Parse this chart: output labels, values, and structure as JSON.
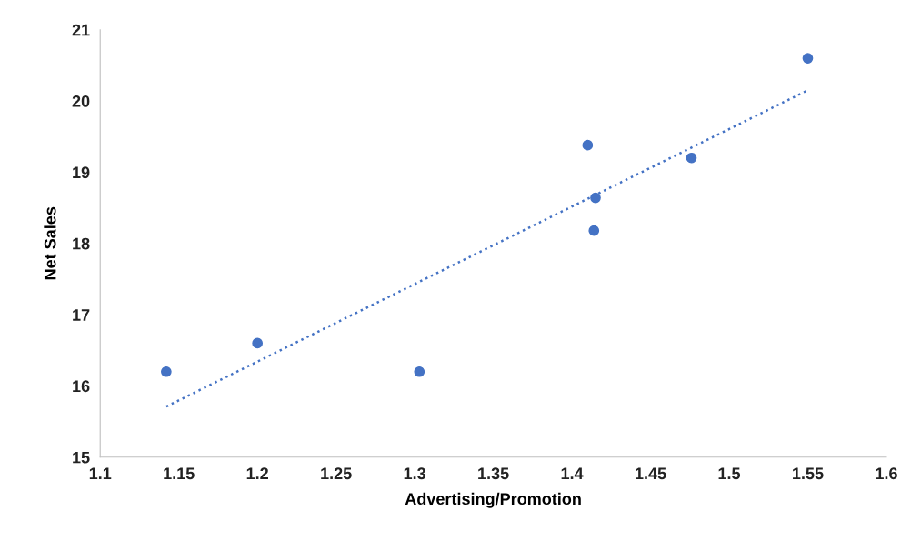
{
  "chart_data": {
    "type": "scatter",
    "xlabel": "Advertising/Promotion",
    "ylabel": "Net Sales",
    "xlim": [
      1.1,
      1.6
    ],
    "xticks": [
      1.1,
      1.15,
      1.2,
      1.25,
      1.3,
      1.35,
      1.4,
      1.45,
      1.5,
      1.55,
      1.6
    ],
    "ylim": [
      15,
      21
    ],
    "yticks": [
      15,
      16,
      17,
      18,
      19,
      20,
      21
    ],
    "grid": false,
    "legend": false,
    "series": [
      {
        "color": "#4472c4",
        "marker": "circle",
        "x": [
          1.142,
          1.2,
          1.303,
          1.41,
          1.415,
          1.414,
          1.476,
          1.55
        ],
        "values": [
          16.2,
          16.6,
          16.2,
          19.38,
          18.64,
          18.18,
          19.2,
          20.6
        ]
      },
      {
        "type": "line",
        "color": "#4472c4",
        "line_style": "dotted",
        "x": [
          1.142,
          1.55
        ],
        "values": [
          15.71,
          20.15
        ]
      }
    ]
  }
}
